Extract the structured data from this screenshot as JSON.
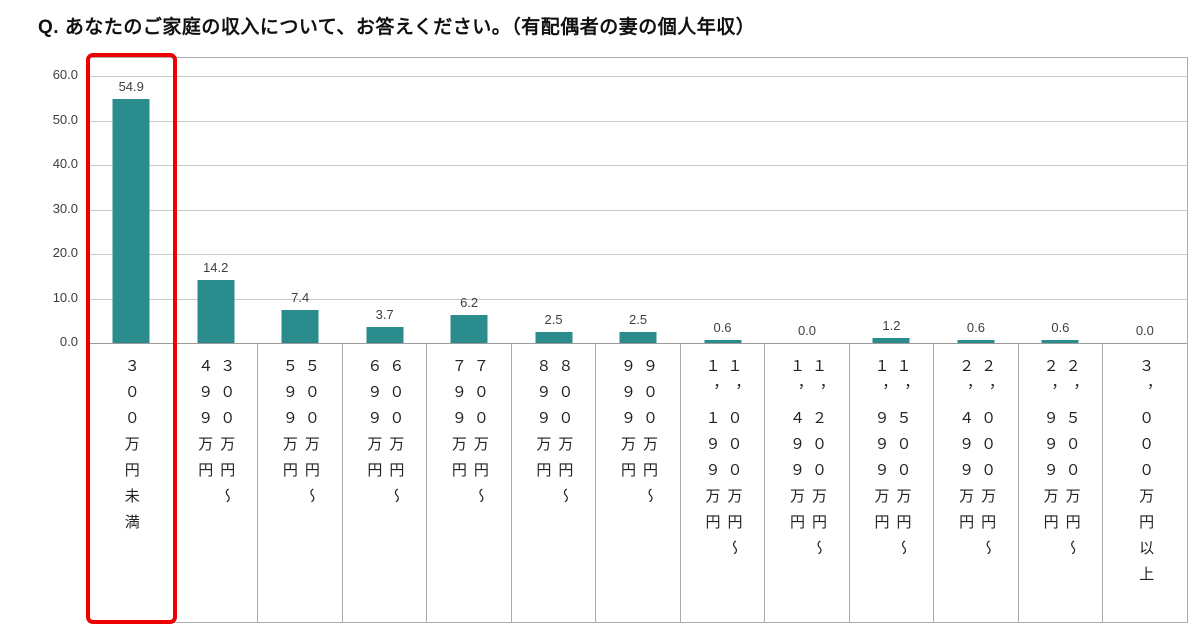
{
  "colors": {
    "bar_fill": "#2a8c8c",
    "highlight_border": "#ee0000",
    "gridline": "#c9c9c9",
    "frame_border": "#adadad"
  },
  "chart_data": {
    "type": "bar",
    "title": "Q. あなたのご家庭の収入について、お答えください。（有配偶者の妻の個人年収）",
    "categories": [
      "３００万円未満",
      "３００万円～４９９万円",
      "５００万円～５９９万円",
      "６００万円～６９９万円",
      "７００万円～７９９万円",
      "８００万円～８９９万円",
      "９００万円～９９９万円",
      "１，０００万円～１，１９９万円",
      "１，２００万円～１，４９９万円",
      "１，５００万円～１，９９９万円",
      "２，０００万円～２，４９９万円",
      "２，５００万円～２，９９９万円",
      "３，０００万円以上"
    ],
    "categories_display": [
      "３００万円未満",
      "３００万円～\n４９９万円",
      "５００万円～\n５９９万円",
      "６００万円～\n６９９万円",
      "７００万円～\n７９９万円",
      "８００万円～\n８９９万円",
      "９００万円～\n９９９万円",
      "１，０００万円～\n１，１９９万円",
      "１，２００万円～\n１，４９９万円",
      "１，５００万円～\n１，９９９万円",
      "２，０００万円～\n２，４９９万円",
      "２，５００万円～\n２，９９９万円",
      "３，０００万円以上"
    ],
    "values": [
      54.9,
      14.2,
      7.4,
      3.7,
      6.2,
      2.5,
      2.5,
      0.6,
      0.0,
      1.2,
      0.6,
      0.6,
      0.0
    ],
    "value_labels": [
      "54.9",
      "14.2",
      "7.4",
      "3.7",
      "6.2",
      "2.5",
      "2.5",
      "0.6",
      "0.0",
      "1.2",
      "0.6",
      "0.6",
      "0.0"
    ],
    "xlabel": "",
    "ylabel": "",
    "ylim": [
      0,
      60
    ],
    "ytick_labels": [
      "60.0",
      "50.0",
      "40.0",
      "30.0",
      "20.0",
      "10.0",
      "0.0"
    ],
    "grid": "horizontal",
    "legend": "none",
    "highlight_index": 0
  }
}
